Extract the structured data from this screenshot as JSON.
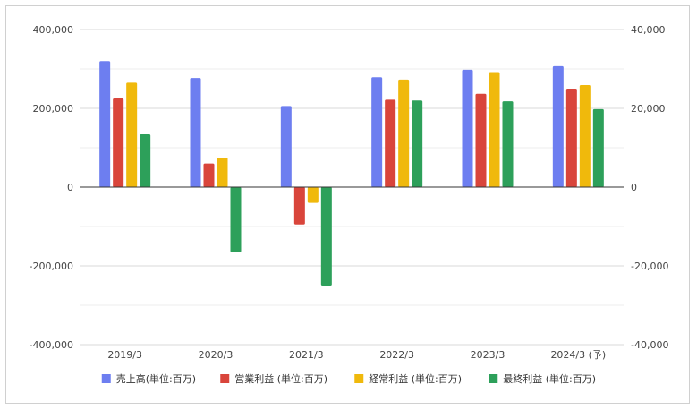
{
  "chart_data": {
    "type": "bar",
    "categories": [
      "2019/3",
      "2020/3",
      "2021/3",
      "2022/3",
      "2023/3",
      "2024/3 (予)"
    ],
    "series": [
      {
        "name": "売上高(単位:百万)",
        "axis": "left",
        "color": "#6d7ef0",
        "values": [
          320000,
          277000,
          206000,
          279000,
          298000,
          307000
        ]
      },
      {
        "name": "営業利益 (単位:百万)",
        "axis": "right",
        "color": "#d9453b",
        "values": [
          22500,
          6000,
          -9500,
          22200,
          23700,
          25000
        ]
      },
      {
        "name": "経常利益 (単位:百万)",
        "axis": "right",
        "color": "#f0b90c",
        "values": [
          26500,
          7500,
          -4000,
          27300,
          29200,
          25900
        ]
      },
      {
        "name": "最終利益 (単位:百万)",
        "axis": "right",
        "color": "#2da05a",
        "values": [
          13400,
          -16500,
          -25000,
          22000,
          21800,
          19800
        ]
      }
    ],
    "left_axis": {
      "ylim": [
        -400000,
        400000
      ],
      "ticks": [
        400000,
        200000,
        0,
        -200000,
        -400000
      ],
      "tick_labels": [
        "400,000",
        "200,000",
        "0",
        "-200,000",
        "-400,000"
      ]
    },
    "right_axis": {
      "ylim": [
        -40000,
        40000
      ],
      "ticks": [
        40000,
        20000,
        0,
        -20000,
        -40000
      ],
      "tick_labels": [
        "40,000",
        "20,000",
        "0",
        "-20,000",
        "-40,000"
      ]
    },
    "grid": true,
    "legend_position": "bottom"
  }
}
